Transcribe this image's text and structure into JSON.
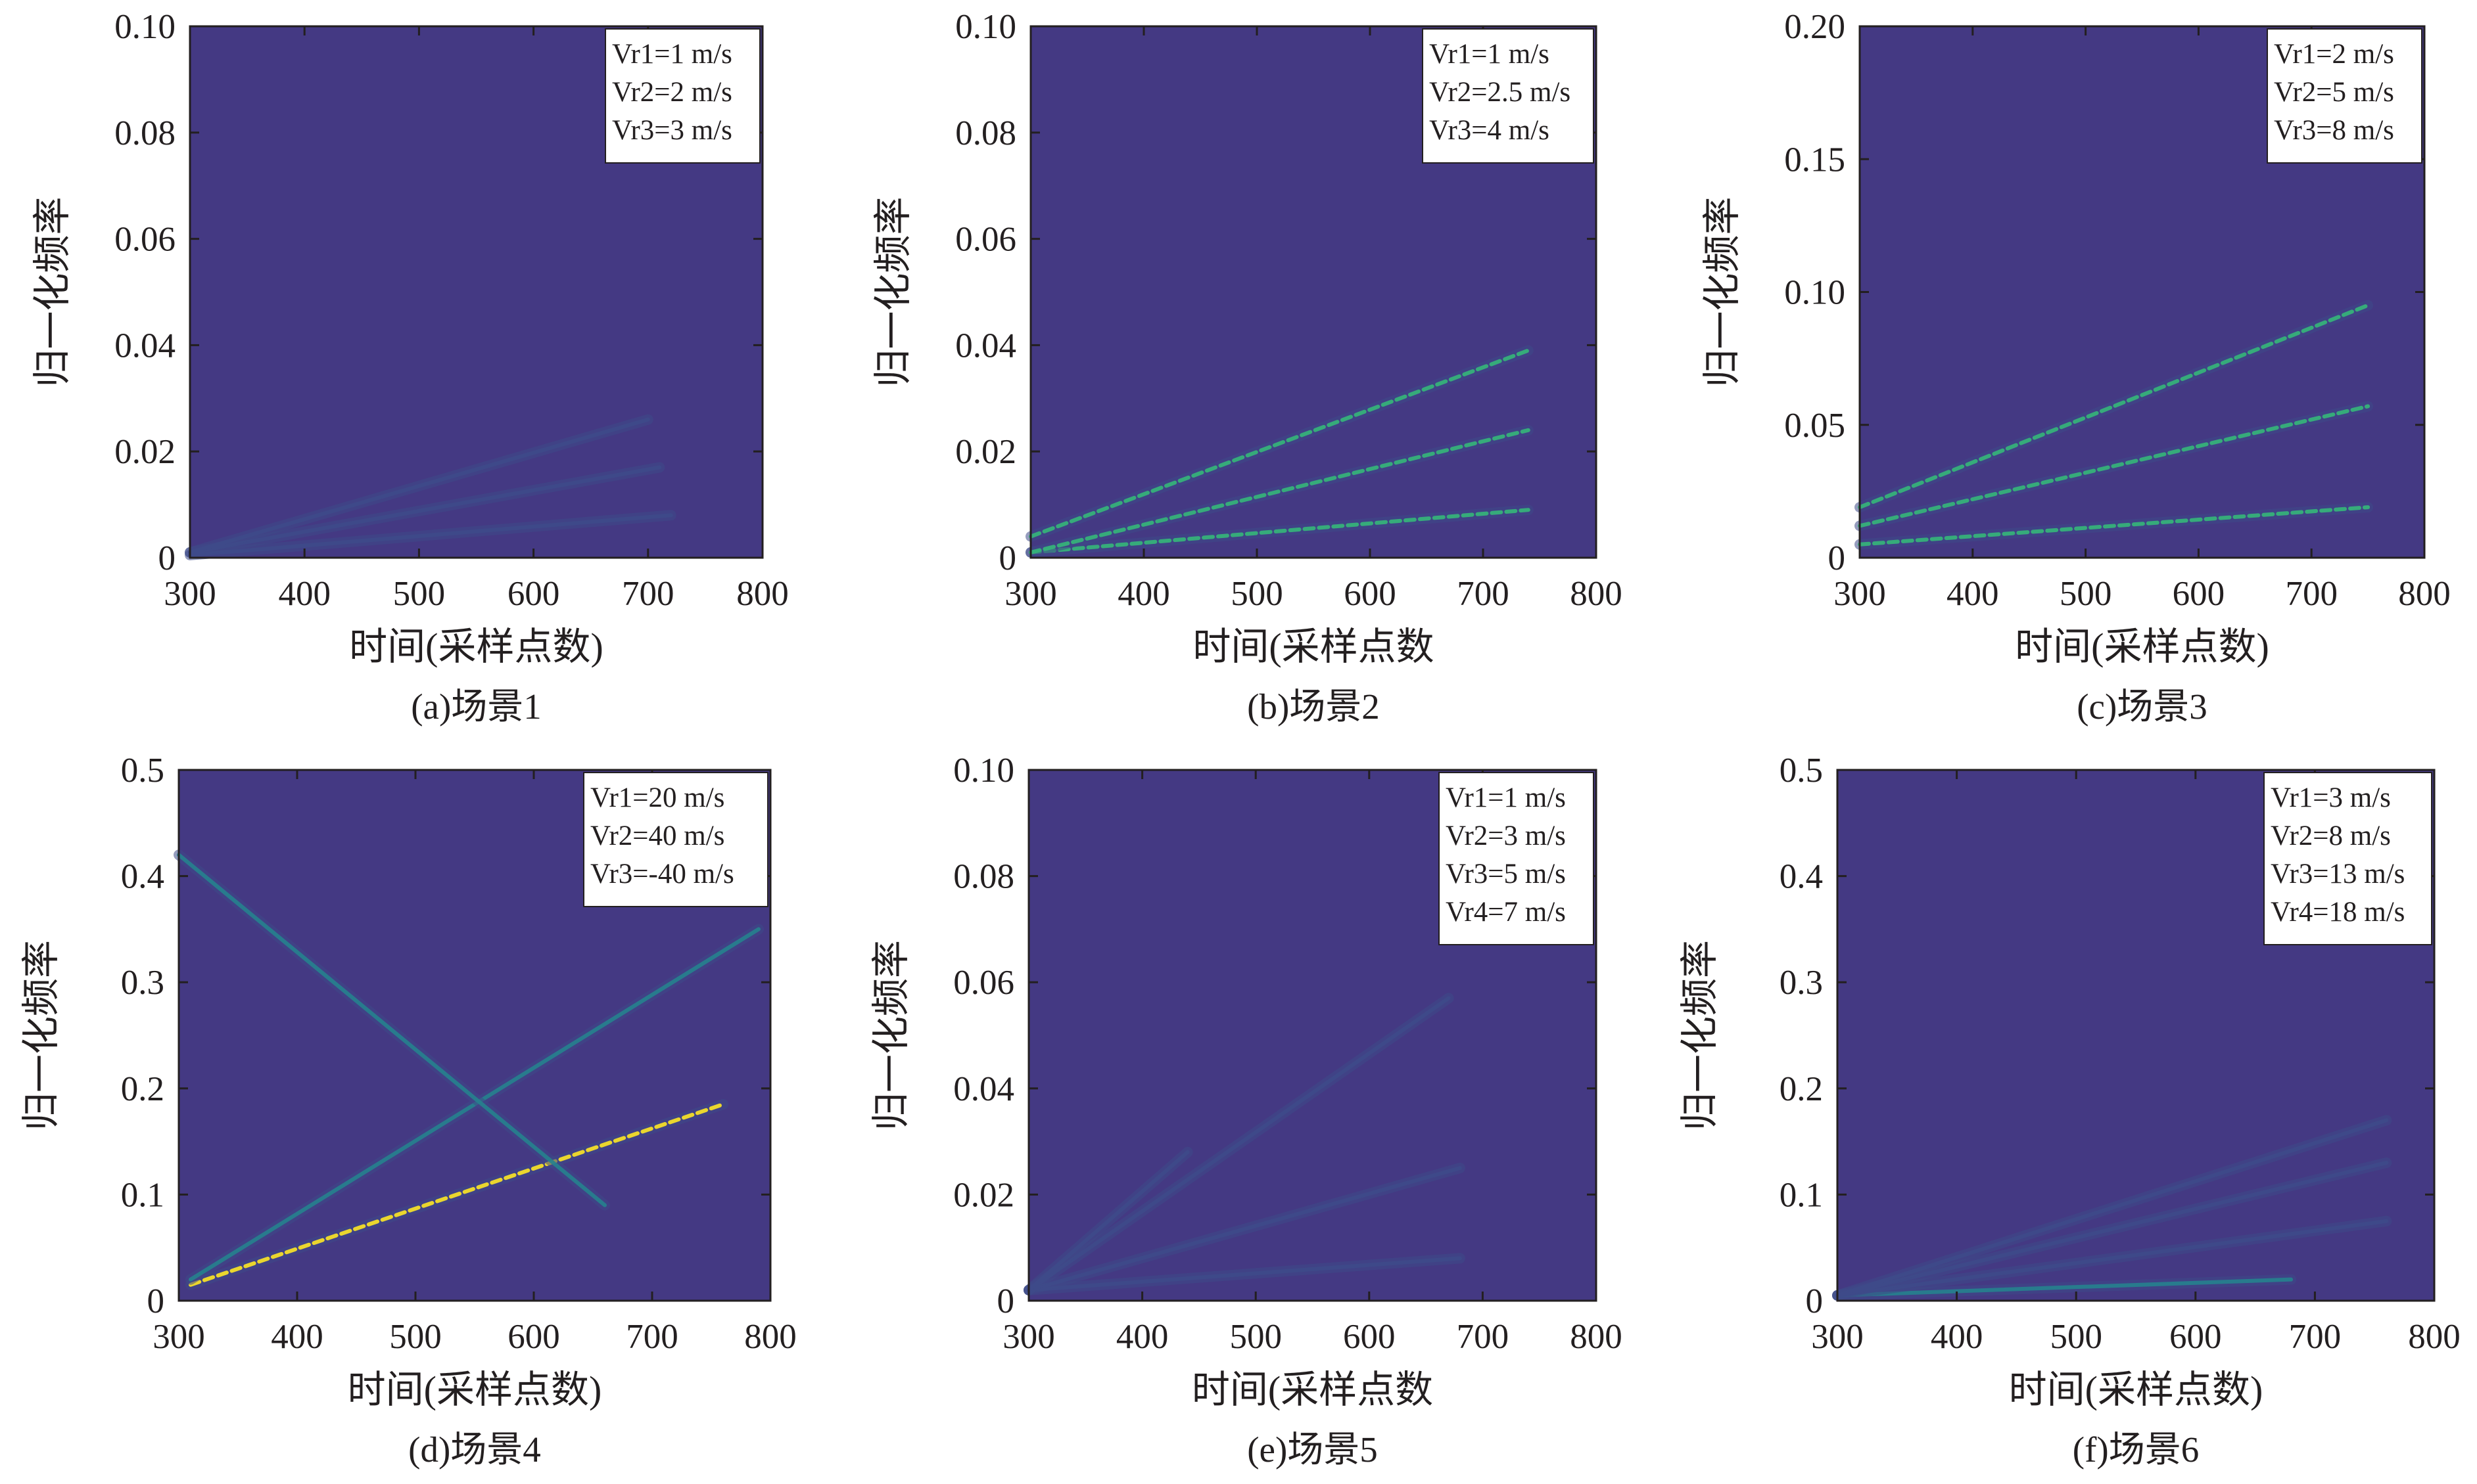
{
  "colors": {
    "background": "#443983",
    "low": "#3e4a89",
    "mid": "#26828e",
    "high": "#35b779",
    "peak": "#fde725",
    "axis": "#231f20"
  },
  "chart_data": [
    {
      "type": "heatmap",
      "caption": "(a)场景1",
      "xlabel": "时间(采样点数)",
      "ylabel": "归一化频率",
      "xlim": [
        300,
        800
      ],
      "ylim": [
        0,
        0.1
      ],
      "xticks": [
        300,
        400,
        500,
        600,
        700,
        800
      ],
      "yticks": [
        "0",
        "0.02",
        "0.04",
        "0.06",
        "0.08",
        "0.10"
      ],
      "legend": [
        "Vr1=1 m/s",
        "Vr2=2 m/s",
        "Vr3=3 m/s"
      ],
      "series": [
        {
          "x": [
            300,
            720
          ],
          "y": [
            0.0005,
            0.008
          ],
          "intensity": 0.35
        },
        {
          "x": [
            300,
            710
          ],
          "y": [
            0.001,
            0.017
          ],
          "intensity": 0.35
        },
        {
          "x": [
            300,
            700
          ],
          "y": [
            0.001,
            0.026
          ],
          "intensity": 0.3
        }
      ]
    },
    {
      "type": "heatmap",
      "caption": "(b)场景2",
      "xlabel": "时间(采样点数",
      "ylabel": "归一化频率",
      "xlim": [
        300,
        800
      ],
      "ylim": [
        0,
        0.1
      ],
      "xticks": [
        300,
        400,
        500,
        600,
        700,
        800
      ],
      "yticks": [
        "0",
        "0.02",
        "0.04",
        "0.06",
        "0.08",
        "0.10"
      ],
      "legend": [
        "Vr1=1 m/s",
        "Vr2=2.5 m/s",
        "Vr3=4 m/s"
      ],
      "series": [
        {
          "x": [
            300,
            740
          ],
          "y": [
            0.001,
            0.009
          ],
          "intensity": 0.7
        },
        {
          "x": [
            300,
            740
          ],
          "y": [
            0.001,
            0.024
          ],
          "intensity": 0.8
        },
        {
          "x": [
            300,
            740
          ],
          "y": [
            0.004,
            0.039
          ],
          "intensity": 0.7
        }
      ]
    },
    {
      "type": "heatmap",
      "caption": "(c)场景3",
      "xlabel": "时间(采样点数)",
      "ylabel": "归一化频率",
      "xlim": [
        300,
        800
      ],
      "ylim": [
        0,
        0.2
      ],
      "xticks": [
        300,
        400,
        500,
        600,
        700,
        800
      ],
      "yticks": [
        "0",
        "0.05",
        "0.10",
        "0.15",
        "0.20"
      ],
      "legend": [
        "Vr1=2 m/s",
        "Vr2=5 m/s",
        "Vr3=8 m/s"
      ],
      "series": [
        {
          "x": [
            300,
            750
          ],
          "y": [
            0.005,
            0.019
          ],
          "intensity": 0.7
        },
        {
          "x": [
            300,
            750
          ],
          "y": [
            0.012,
            0.057
          ],
          "intensity": 0.75
        },
        {
          "x": [
            300,
            750
          ],
          "y": [
            0.019,
            0.095
          ],
          "intensity": 0.75
        }
      ]
    },
    {
      "type": "heatmap",
      "caption": "(d)场景4",
      "xlabel": "时间(采样点数)",
      "ylabel": "归一化频率",
      "xlim": [
        300,
        800
      ],
      "ylim": [
        0,
        0.5
      ],
      "xticks": [
        300,
        400,
        500,
        600,
        700,
        800
      ],
      "yticks": [
        "0",
        "0.1",
        "0.2",
        "0.3",
        "0.4",
        "0.5"
      ],
      "legend": [
        "Vr1=20 m/s",
        "Vr2=40 m/s",
        "Vr3=-40 m/s"
      ],
      "series": [
        {
          "x": [
            310,
            760
          ],
          "y": [
            0.015,
            0.185
          ],
          "intensity": 0.85
        },
        {
          "x": [
            310,
            790
          ],
          "y": [
            0.02,
            0.35
          ],
          "intensity": 0.55
        },
        {
          "x": [
            300,
            660
          ],
          "y": [
            0.42,
            0.09
          ],
          "intensity": 0.55
        }
      ]
    },
    {
      "type": "heatmap",
      "caption": "(e)场景5",
      "xlabel": "时间(采样点数",
      "ylabel": "归一化频率",
      "xlim": [
        300,
        800
      ],
      "ylim": [
        0,
        0.1
      ],
      "xticks": [
        300,
        400,
        500,
        600,
        700,
        800
      ],
      "yticks": [
        "0",
        "0.02",
        "0.04",
        "0.06",
        "0.08",
        "0.10"
      ],
      "legend": [
        "Vr1=1 m/s",
        "Vr2=3 m/s",
        "Vr3=5 m/s",
        "Vr4=7 m/s"
      ],
      "series": [
        {
          "x": [
            300,
            680
          ],
          "y": [
            0.002,
            0.008
          ],
          "intensity": 0.3
        },
        {
          "x": [
            300,
            680
          ],
          "y": [
            0.002,
            0.025
          ],
          "intensity": 0.3
        },
        {
          "x": [
            300,
            670
          ],
          "y": [
            0.002,
            0.057
          ],
          "intensity": 0.3
        },
        {
          "x": [
            300,
            440
          ],
          "y": [
            0.002,
            0.028
          ],
          "intensity": 0.3
        }
      ]
    },
    {
      "type": "heatmap",
      "caption": "(f)场景6",
      "xlabel": "时间(采样点数)",
      "ylabel": "归一化频率",
      "xlim": [
        300,
        800
      ],
      "ylim": [
        0,
        0.5
      ],
      "xticks": [
        300,
        400,
        500,
        600,
        700,
        800
      ],
      "yticks": [
        "0",
        "0.1",
        "0.2",
        "0.3",
        "0.4",
        "0.5"
      ],
      "legend": [
        "Vr1=3 m/s",
        "Vr2=8 m/s",
        "Vr3=13 m/s",
        "Vr4=18 m/s"
      ],
      "series": [
        {
          "x": [
            300,
            680
          ],
          "y": [
            0.005,
            0.02
          ],
          "intensity": 0.6
        },
        {
          "x": [
            300,
            760
          ],
          "y": [
            0.005,
            0.075
          ],
          "intensity": 0.4
        },
        {
          "x": [
            300,
            760
          ],
          "y": [
            0.005,
            0.13
          ],
          "intensity": 0.4
        },
        {
          "x": [
            300,
            760
          ],
          "y": [
            0.005,
            0.17
          ],
          "intensity": 0.35
        }
      ]
    }
  ]
}
